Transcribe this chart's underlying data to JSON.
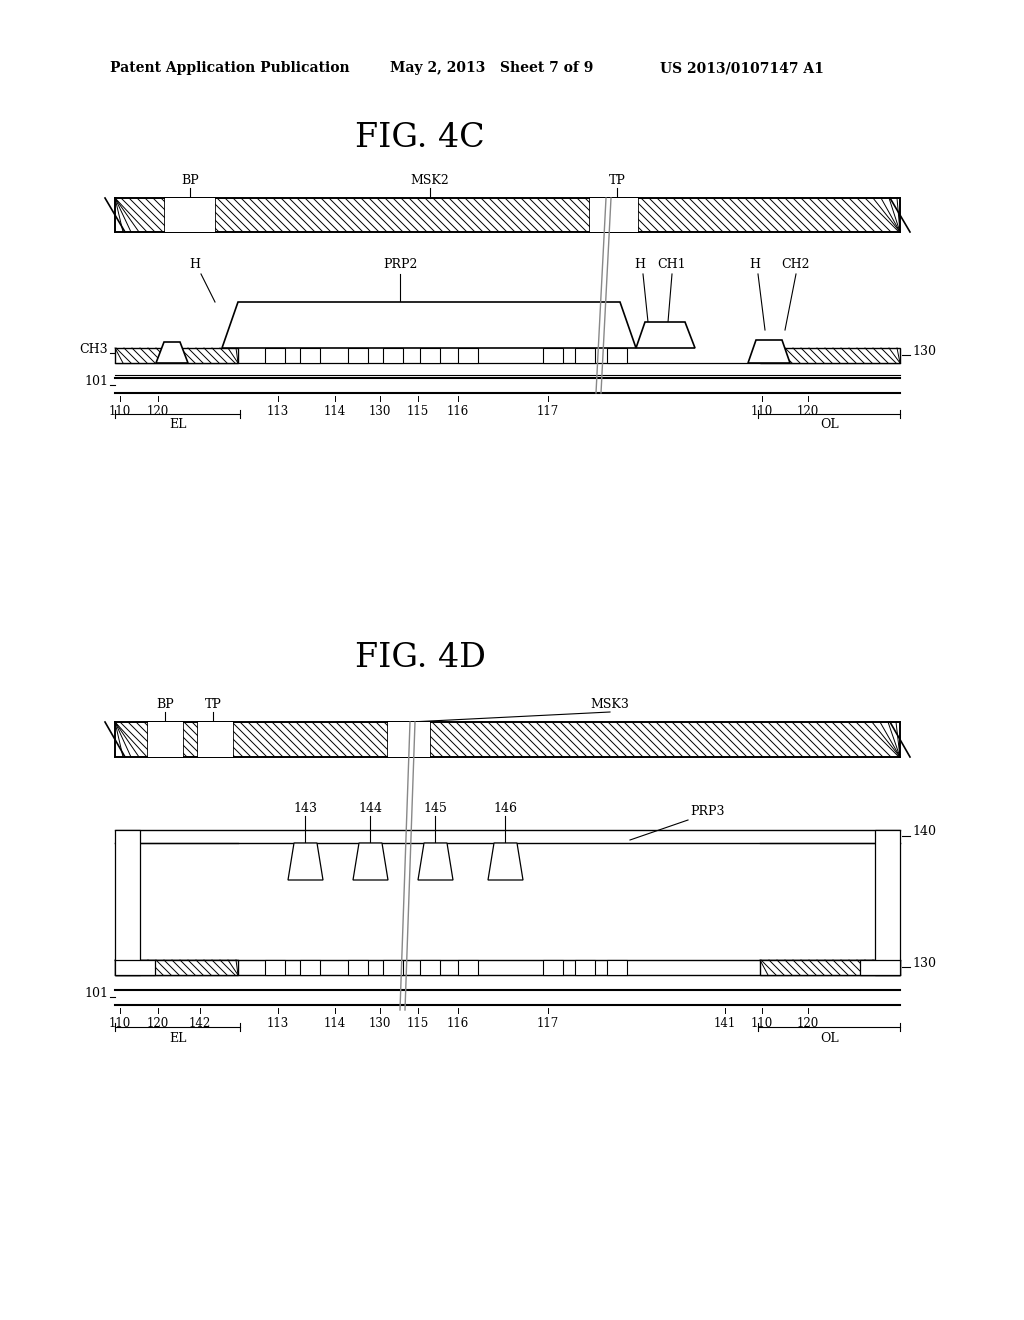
{
  "header_left": "Patent Application Publication",
  "header_mid": "May 2, 2013   Sheet 7 of 9",
  "header_right": "US 2013/0107147 A1",
  "fig4c_title": "FIG. 4C",
  "fig4d_title": "FIG. 4D",
  "bg_color": "#ffffff",
  "line_color": "#000000"
}
